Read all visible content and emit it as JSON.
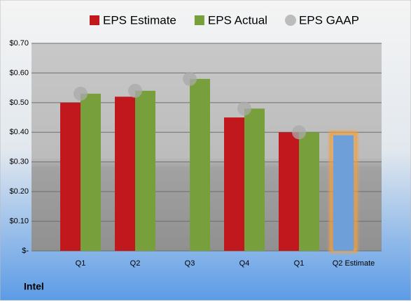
{
  "chart_data": {
    "type": "bar",
    "categories": [
      "Q1",
      "Q2",
      "Q3",
      "Q4",
      "Q1",
      "Q2 Estimate"
    ],
    "series": [
      {
        "name": "EPS Estimate",
        "color": "#c0181c",
        "values": [
          0.5,
          0.52,
          null,
          0.45,
          0.4,
          0.39
        ],
        "colors": [
          "#c0181c",
          "#c0181c",
          "#c0181c",
          "#c0181c",
          "#c0181c",
          "#6f9fd8"
        ]
      },
      {
        "name": "EPS Actual",
        "color": "#77a03c",
        "values": [
          0.53,
          0.54,
          0.58,
          0.48,
          0.4,
          null
        ]
      },
      {
        "name": "EPS GAAP",
        "color": "#a9a9a9",
        "marker": "circle",
        "values": [
          0.53,
          0.54,
          0.58,
          0.48,
          0.4,
          null
        ]
      }
    ],
    "ylim": [
      0,
      0.7
    ],
    "yticks": [
      {
        "value": 0,
        "label": "$-"
      },
      {
        "value": 0.1,
        "label": "$0.10"
      },
      {
        "value": 0.2,
        "label": "$0.20"
      },
      {
        "value": 0.3,
        "label": "$0.30"
      },
      {
        "value": 0.4,
        "label": "$0.40"
      },
      {
        "value": 0.5,
        "label": "$0.50"
      },
      {
        "value": 0.6,
        "label": "$0.60"
      },
      {
        "value": 0.7,
        "label": "$0.70"
      }
    ],
    "grid": true,
    "legend": "top",
    "caption": "Intel"
  }
}
